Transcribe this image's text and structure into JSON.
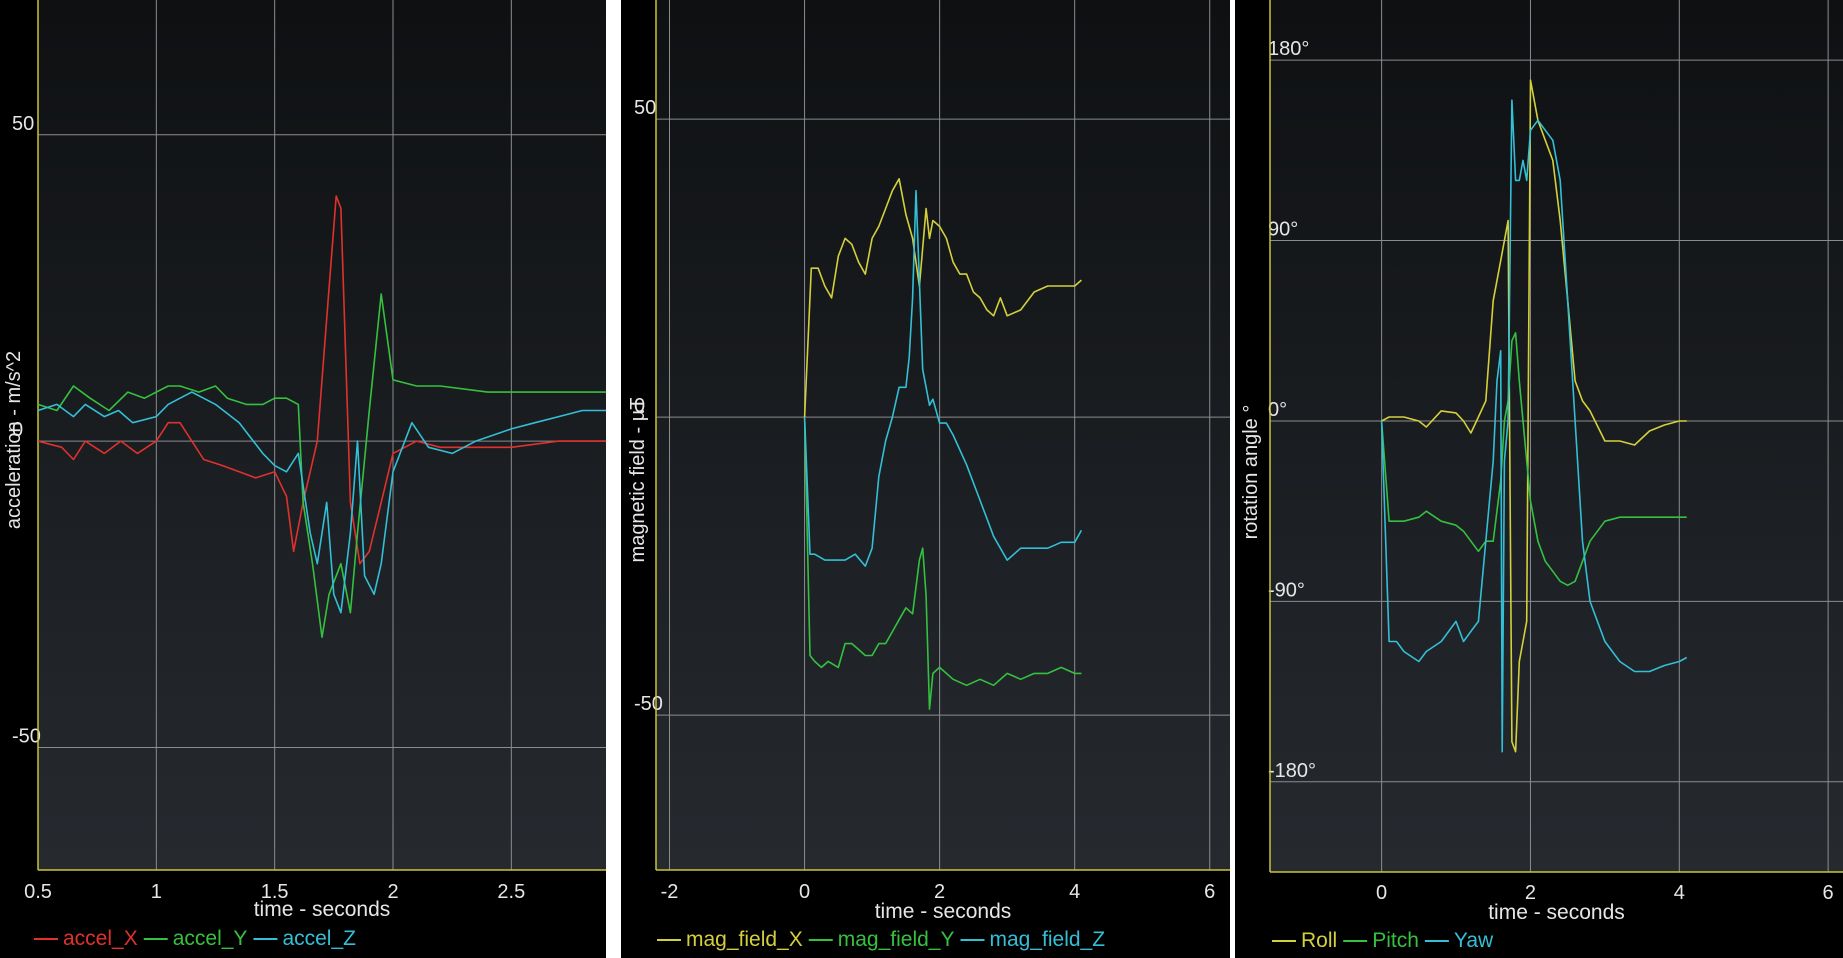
{
  "charts": [
    {
      "title": "",
      "type": "line",
      "xlabel": "time - seconds",
      "ylabel": "acceleration - m/s^2",
      "xlim": [
        0.5,
        2.9
      ],
      "ylim": [
        -70,
        72
      ],
      "xticks": [
        0.5,
        1,
        1.5,
        2,
        2.5
      ],
      "xtick_labels": [
        "0.5",
        "1",
        "1.5",
        "2",
        "2.5"
      ],
      "yticks": [
        50,
        0,
        -50
      ],
      "ytick_labels": [
        "50",
        "0",
        "-50"
      ],
      "legend_position": "bottom-left",
      "series": [
        {
          "name": "accel_X",
          "color": "#e0312d",
          "x": [
            0.5,
            0.6,
            0.65,
            0.7,
            0.78,
            0.85,
            0.92,
            1.0,
            1.05,
            1.1,
            1.2,
            1.28,
            1.35,
            1.42,
            1.5,
            1.55,
            1.58,
            1.62,
            1.65,
            1.68,
            1.72,
            1.76,
            1.78,
            1.82,
            1.86,
            1.9,
            1.95,
            2.0,
            2.1,
            2.2,
            2.3,
            2.5,
            2.7,
            2.9
          ],
          "y": [
            0,
            -1,
            -3,
            0,
            -2,
            0,
            -2,
            0,
            3,
            3,
            -3,
            -4,
            -5,
            -6,
            -5,
            -9,
            -18,
            -10,
            -5,
            0,
            20,
            40,
            38,
            -10,
            -20,
            -18,
            -10,
            -2,
            0,
            -1,
            -1,
            -1,
            0,
            0
          ]
        },
        {
          "name": "accel_Y",
          "color": "#35c140",
          "x": [
            0.5,
            0.58,
            0.65,
            0.72,
            0.8,
            0.88,
            0.95,
            1.0,
            1.05,
            1.1,
            1.18,
            1.25,
            1.3,
            1.38,
            1.45,
            1.5,
            1.55,
            1.6,
            1.62,
            1.66,
            1.7,
            1.73,
            1.78,
            1.82,
            1.85,
            1.9,
            1.95,
            2.0,
            2.1,
            2.2,
            2.4,
            2.6,
            2.8,
            2.9
          ],
          "y": [
            6,
            5,
            9,
            7,
            5,
            8,
            7,
            8,
            9,
            9,
            8,
            9,
            7,
            6,
            6,
            7,
            7,
            6,
            -10,
            -20,
            -32,
            -25,
            -20,
            -28,
            -15,
            5,
            24,
            10,
            9,
            9,
            8,
            8,
            8,
            8
          ]
        },
        {
          "name": "accel_Z",
          "color": "#33bfd6",
          "x": [
            0.5,
            0.58,
            0.65,
            0.7,
            0.78,
            0.84,
            0.9,
            1.0,
            1.05,
            1.1,
            1.15,
            1.25,
            1.35,
            1.45,
            1.5,
            1.55,
            1.6,
            1.65,
            1.68,
            1.72,
            1.75,
            1.78,
            1.82,
            1.85,
            1.88,
            1.92,
            1.95,
            2.0,
            2.08,
            2.15,
            2.25,
            2.35,
            2.5,
            2.6,
            2.7,
            2.8,
            2.9
          ],
          "y": [
            5,
            6,
            4,
            6,
            4,
            5,
            3,
            4,
            6,
            7,
            8,
            6,
            3,
            -2,
            -4,
            -5,
            -2,
            -15,
            -20,
            -10,
            -25,
            -28,
            -15,
            0,
            -22,
            -25,
            -20,
            -5,
            3,
            -1,
            -2,
            0,
            2,
            3,
            4,
            5,
            5
          ]
        }
      ]
    },
    {
      "title": "",
      "type": "line",
      "xlabel": "time - seconds",
      "ylabel": "magnetic field - µT",
      "xlim": [
        -2.2,
        6.3
      ],
      "ylim": [
        -76,
        70
      ],
      "xticks": [
        -2,
        0,
        2,
        4,
        6
      ],
      "xtick_labels": [
        "-2",
        "0",
        "2",
        "4",
        "6"
      ],
      "yticks": [
        50,
        0,
        -50
      ],
      "ytick_labels": [
        "50",
        "0",
        "-50"
      ],
      "legend_position": "bottom-left",
      "series": [
        {
          "name": "mag_field_X",
          "color": "#d4d03b",
          "x": [
            0.0,
            0.1,
            0.2,
            0.3,
            0.4,
            0.5,
            0.6,
            0.7,
            0.8,
            0.9,
            1.0,
            1.1,
            1.2,
            1.3,
            1.4,
            1.5,
            1.6,
            1.7,
            1.8,
            1.85,
            1.9,
            2.0,
            2.1,
            2.2,
            2.3,
            2.4,
            2.5,
            2.6,
            2.7,
            2.8,
            2.9,
            3.0,
            3.2,
            3.4,
            3.6,
            3.8,
            4.0,
            4.1
          ],
          "y": [
            0,
            25,
            25,
            22,
            20,
            27,
            30,
            29,
            26,
            24,
            30,
            32,
            35,
            38,
            40,
            34,
            30,
            22,
            35,
            30,
            33,
            32,
            30,
            26,
            24,
            24,
            21,
            20,
            18,
            17,
            20,
            17,
            18,
            21,
            22,
            22,
            22,
            23
          ]
        },
        {
          "name": "mag_field_Y",
          "color": "#35c140",
          "x": [
            0.0,
            0.08,
            0.15,
            0.25,
            0.35,
            0.5,
            0.6,
            0.7,
            0.8,
            0.9,
            1.0,
            1.1,
            1.2,
            1.3,
            1.4,
            1.5,
            1.6,
            1.7,
            1.75,
            1.8,
            1.85,
            1.9,
            2.0,
            2.2,
            2.4,
            2.6,
            2.8,
            3.0,
            3.2,
            3.4,
            3.6,
            3.8,
            4.0,
            4.1
          ],
          "y": [
            0,
            -40,
            -41,
            -42,
            -41,
            -42,
            -38,
            -38,
            -39,
            -40,
            -40,
            -38,
            -38,
            -36,
            -34,
            -32,
            -33,
            -24,
            -22,
            -30,
            -49,
            -43,
            -42,
            -44,
            -45,
            -44,
            -45,
            -43,
            -44,
            -43,
            -43,
            -42,
            -43,
            -43
          ]
        },
        {
          "name": "mag_field_Z",
          "color": "#33bfd6",
          "x": [
            0.0,
            0.08,
            0.15,
            0.3,
            0.45,
            0.6,
            0.75,
            0.9,
            1.0,
            1.1,
            1.2,
            1.3,
            1.4,
            1.5,
            1.55,
            1.6,
            1.65,
            1.75,
            1.85,
            1.9,
            2.0,
            2.1,
            2.2,
            2.4,
            2.6,
            2.8,
            3.0,
            3.2,
            3.4,
            3.6,
            3.8,
            4.0,
            4.1
          ],
          "y": [
            0,
            -23,
            -23,
            -24,
            -24,
            -24,
            -23,
            -25,
            -22,
            -10,
            -4,
            0,
            5,
            5,
            10,
            20,
            38,
            8,
            2,
            3,
            -1,
            -1,
            -3,
            -8,
            -14,
            -20,
            -24,
            -22,
            -22,
            -22,
            -21,
            -21,
            -19
          ]
        }
      ]
    },
    {
      "title": "",
      "type": "line",
      "xlabel": "time - seconds",
      "ylabel": "rotation angle °",
      "xlim": [
        -1.5,
        6.2
      ],
      "ylim": [
        -225,
        210
      ],
      "xticks": [
        0,
        2,
        4,
        6
      ],
      "xtick_labels": [
        "0",
        "2",
        "4",
        "6"
      ],
      "yticks": [
        180,
        90,
        0,
        -90,
        -180
      ],
      "ytick_labels": [
        "180°",
        "90°",
        "0°",
        "-90°",
        "-180°"
      ],
      "legend_position": "bottom-left",
      "series": [
        {
          "name": "Roll",
          "color": "#d4d03b",
          "x": [
            0.0,
            0.1,
            0.3,
            0.5,
            0.6,
            0.8,
            1.0,
            1.1,
            1.2,
            1.3,
            1.4,
            1.5,
            1.6,
            1.65,
            1.7,
            1.75,
            1.8,
            1.85,
            1.9,
            1.95,
            2.0,
            2.1,
            2.2,
            2.3,
            2.4,
            2.5,
            2.6,
            2.7,
            2.8,
            3.0,
            3.2,
            3.4,
            3.6,
            3.8,
            4.0,
            4.1
          ],
          "y": [
            0,
            2,
            2,
            0,
            -3,
            5,
            4,
            0,
            -6,
            2,
            10,
            60,
            80,
            90,
            100,
            -160,
            -165,
            -120,
            -110,
            -100,
            170,
            150,
            140,
            130,
            100,
            60,
            20,
            10,
            5,
            -10,
            -10,
            -12,
            -5,
            -2,
            0,
            0
          ]
        },
        {
          "name": "Pitch",
          "color": "#35c140",
          "x": [
            0.0,
            0.1,
            0.3,
            0.5,
            0.6,
            0.8,
            1.0,
            1.1,
            1.2,
            1.3,
            1.4,
            1.5,
            1.6,
            1.65,
            1.7,
            1.75,
            1.8,
            1.85,
            1.9,
            1.95,
            2.0,
            2.1,
            2.2,
            2.3,
            2.4,
            2.5,
            2.6,
            2.7,
            2.8,
            3.0,
            3.2,
            3.4,
            3.6,
            3.8,
            4.0,
            4.1
          ],
          "y": [
            0,
            -50,
            -50,
            -48,
            -45,
            -50,
            -52,
            -55,
            -60,
            -65,
            -60,
            -60,
            -30,
            0,
            10,
            40,
            44,
            20,
            0,
            -20,
            -40,
            -60,
            -70,
            -75,
            -80,
            -82,
            -80,
            -70,
            -60,
            -50,
            -48,
            -48,
            -48,
            -48,
            -48,
            -48
          ]
        },
        {
          "name": "Yaw",
          "color": "#33bfd6",
          "x": [
            0.0,
            0.1,
            0.2,
            0.3,
            0.5,
            0.6,
            0.8,
            1.0,
            1.1,
            1.2,
            1.3,
            1.35,
            1.4,
            1.45,
            1.5,
            1.55,
            1.6,
            1.62,
            1.65,
            1.7,
            1.75,
            1.8,
            1.85,
            1.9,
            1.95,
            2.0,
            2.1,
            2.2,
            2.3,
            2.4,
            2.5,
            2.6,
            2.7,
            2.8,
            3.0,
            3.2,
            3.4,
            3.6,
            3.8,
            4.0,
            4.1
          ],
          "y": [
            0,
            -110,
            -110,
            -115,
            -120,
            -115,
            -110,
            -100,
            -110,
            -105,
            -100,
            -80,
            -60,
            -40,
            -20,
            20,
            35,
            -165,
            -20,
            0,
            160,
            120,
            120,
            130,
            120,
            145,
            150,
            145,
            140,
            120,
            60,
            0,
            -60,
            -90,
            -110,
            -120,
            -125,
            -125,
            -122,
            -120,
            -118
          ]
        }
      ]
    }
  ]
}
